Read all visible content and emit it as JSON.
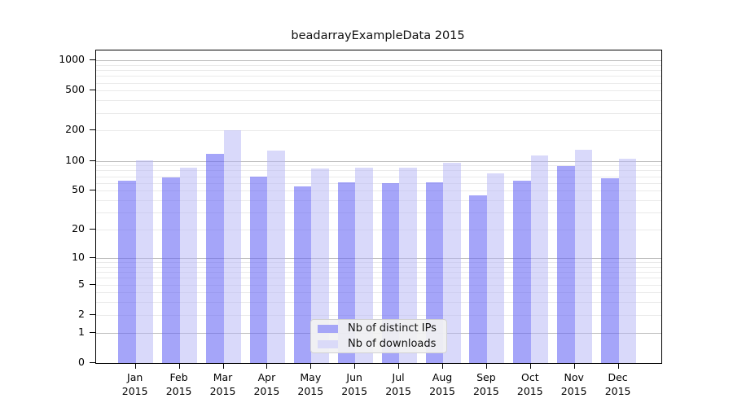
{
  "title": "beadarrayExampleData 2015",
  "chart_data": {
    "type": "bar",
    "title": "beadarrayExampleData 2015",
    "categories": [
      "Jan 2015",
      "Feb 2015",
      "Mar 2015",
      "Apr 2015",
      "May 2015",
      "Jun 2015",
      "Jul 2015",
      "Aug 2015",
      "Sep 2015",
      "Oct 2015",
      "Nov 2015",
      "Dec 2015"
    ],
    "series": [
      {
        "name": "Nb of distinct IPs",
        "legend_color": "#a6a6f7",
        "bar_color": "rgba(100,100,245,0.58)",
        "values": [
          63,
          68,
          117,
          70,
          55,
          61,
          60,
          61,
          45,
          63,
          88,
          67
        ]
      },
      {
        "name": "Nb of downloads",
        "legend_color": "#dadaf8",
        "bar_color": "rgba(180,180,246,0.50)",
        "values": [
          101,
          85,
          203,
          126,
          84,
          85,
          85,
          95,
          75,
          113,
          130,
          104
        ]
      }
    ],
    "xlabel": "",
    "ylabel": "",
    "y_axis": {
      "scale": "log1p",
      "tick_labels": [
        0,
        1,
        2,
        5,
        10,
        20,
        50,
        100,
        200,
        500,
        1000
      ],
      "range": [
        0,
        1250
      ]
    },
    "grid": "horizontal, minor lines at 2-9 per decade, major at powers of 10",
    "legend_position": "inside-bottom-center"
  }
}
